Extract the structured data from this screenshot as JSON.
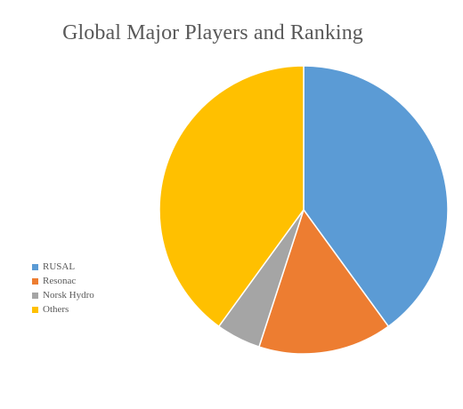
{
  "chart_data": {
    "type": "pie",
    "title": "Global Major Players and Ranking",
    "categories": [
      "RUSAL",
      "Resonac",
      "Norsk Hydro",
      "Others"
    ],
    "values": [
      40,
      15,
      5,
      40
    ],
    "colors": [
      "#5B9BD5",
      "#ED7D31",
      "#A5A5A5",
      "#FFC000"
    ],
    "legend_position": "left"
  }
}
